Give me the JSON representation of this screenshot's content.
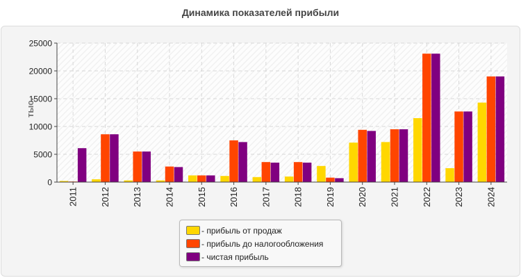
{
  "chart_data": {
    "type": "bar",
    "title": "Динамика показателей прибыли",
    "ylabel": "тыс.",
    "xlabel": "",
    "ylim": [
      0,
      25000
    ],
    "yticks": [
      0,
      5000,
      10000,
      15000,
      20000,
      25000
    ],
    "grid": true,
    "legend_position": "bottom",
    "categories": [
      "2011",
      "2012",
      "2013",
      "2014",
      "2015",
      "2016",
      "2017",
      "2018",
      "2019",
      "2020",
      "2021",
      "2022",
      "2023",
      "2024"
    ],
    "series": [
      {
        "name": "- прибыль от продаж",
        "color": "#ffd700",
        "values": [
          200,
          500,
          300,
          300,
          1200,
          1100,
          900,
          1000,
          2900,
          7100,
          7200,
          11500,
          2500,
          14300
        ]
      },
      {
        "name": "- прибыль до налогообложения",
        "color": "#ff4500",
        "values": [
          100,
          8600,
          5500,
          2800,
          1200,
          7500,
          3600,
          3600,
          800,
          9400,
          9500,
          23100,
          12700,
          19000
        ]
      },
      {
        "name": "- чистая прибыль",
        "color": "#800080",
        "values": [
          6100,
          8600,
          5500,
          2700,
          1200,
          7200,
          3500,
          3500,
          700,
          9200,
          9500,
          23100,
          12700,
          19000
        ]
      }
    ]
  }
}
